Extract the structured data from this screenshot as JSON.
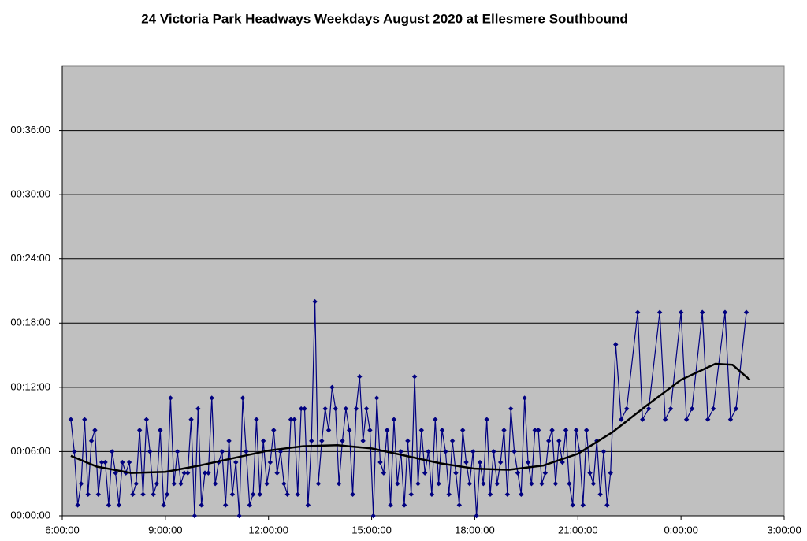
{
  "chart_data": {
    "type": "line",
    "title": "24 Victoria Park Headways Weekdays August 2020 at Ellesmere Southbound",
    "xlim": [
      6,
      27
    ],
    "xticks": [
      {
        "value": 6,
        "label": "6:00:00"
      },
      {
        "value": 9,
        "label": "9:00:00"
      },
      {
        "value": 12,
        "label": "12:00:00"
      },
      {
        "value": 15,
        "label": "15:00:00"
      },
      {
        "value": 18,
        "label": "18:00:00"
      },
      {
        "value": 21,
        "label": "21:00:00"
      },
      {
        "value": 24,
        "label": "0:00:00"
      },
      {
        "value": 27,
        "label": "3:00:00"
      }
    ],
    "ylim": [
      0,
      42
    ],
    "yticks": [
      {
        "value": 0,
        "label": "00:00:00"
      },
      {
        "value": 6,
        "label": "00:06:00"
      },
      {
        "value": 12,
        "label": "00:12:00"
      },
      {
        "value": 18,
        "label": "00:18:00"
      },
      {
        "value": 24,
        "label": "00:24:00"
      },
      {
        "value": 30,
        "label": "00:30:00"
      },
      {
        "value": 36,
        "label": "00:36:00"
      }
    ],
    "grid": true,
    "series": [
      {
        "color": "#000080",
        "markers": true,
        "x": [
          6.25,
          6.35,
          6.45,
          6.55,
          6.65,
          6.75,
          6.85,
          6.95,
          7.05,
          7.15,
          7.25,
          7.35,
          7.45,
          7.55,
          7.65,
          7.75,
          7.85,
          7.95,
          8.05,
          8.15,
          8.25,
          8.35,
          8.45,
          8.55,
          8.65,
          8.75,
          8.85,
          8.95,
          9.05,
          9.15,
          9.25,
          9.35,
          9.45,
          9.55,
          9.65,
          9.75,
          9.85,
          9.95,
          10.05,
          10.15,
          10.25,
          10.35,
          10.45,
          10.55,
          10.65,
          10.75,
          10.85,
          10.95,
          11.05,
          11.15,
          11.25,
          11.35,
          11.45,
          11.55,
          11.65,
          11.75,
          11.85,
          11.95,
          12.05,
          12.15,
          12.25,
          12.35,
          12.45,
          12.55,
          12.65,
          12.75,
          12.85,
          12.95,
          13.05,
          13.15,
          13.25,
          13.35,
          13.45,
          13.55,
          13.65,
          13.75,
          13.85,
          13.95,
          14.05,
          14.15,
          14.25,
          14.35,
          14.45,
          14.55,
          14.65,
          14.75,
          14.85,
          14.95,
          15.05,
          15.15,
          15.25,
          15.35,
          15.45,
          15.55,
          15.65,
          15.75,
          15.85,
          15.95,
          16.05,
          16.15,
          16.25,
          16.35,
          16.45,
          16.55,
          16.65,
          16.75,
          16.85,
          16.95,
          17.05,
          17.15,
          17.25,
          17.35,
          17.45,
          17.55,
          17.65,
          17.75,
          17.85,
          17.95,
          18.05,
          18.15,
          18.25,
          18.35,
          18.45,
          18.55,
          18.65,
          18.75,
          18.85,
          18.95,
          19.05,
          19.15,
          19.25,
          19.35,
          19.45,
          19.55,
          19.65,
          19.75,
          19.85,
          19.95,
          20.05,
          20.15,
          20.25,
          20.35,
          20.45,
          20.55,
          20.65,
          20.75,
          20.85,
          20.95,
          21.05,
          21.15,
          21.25,
          21.35,
          21.45,
          21.55,
          21.65,
          21.75,
          21.85,
          21.95,
          22.1,
          22.26,
          22.42,
          22.74,
          22.88,
          23.06,
          23.38,
          23.54,
          23.7,
          24.0,
          24.16,
          24.32,
          24.62,
          24.78,
          24.94,
          25.28,
          25.44,
          25.6,
          25.9
        ],
        "values": [
          9,
          6,
          1,
          3,
          9,
          2,
          7,
          8,
          2,
          5,
          5,
          1,
          6,
          4,
          1,
          5,
          4,
          5,
          2,
          3,
          8,
          2,
          9,
          6,
          2,
          3,
          8,
          1,
          2,
          11,
          3,
          6,
          3,
          4,
          4,
          9,
          0,
          10,
          1,
          4,
          4,
          11,
          3,
          5,
          6,
          1,
          7,
          2,
          5,
          0,
          11,
          6,
          1,
          2,
          9,
          2,
          7,
          3,
          5,
          8,
          4,
          6,
          3,
          2,
          9,
          9,
          2,
          10,
          10,
          1,
          7,
          20,
          3,
          7,
          10,
          8,
          12,
          10,
          3,
          7,
          10,
          8,
          2,
          10,
          13,
          7,
          10,
          8,
          0,
          11,
          5,
          4,
          8,
          1,
          9,
          3,
          6,
          1,
          7,
          2,
          13,
          3,
          8,
          4,
          6,
          2,
          9,
          3,
          8,
          6,
          2,
          7,
          4,
          1,
          8,
          5,
          3,
          6,
          0,
          5,
          3,
          9,
          2,
          6,
          3,
          5,
          8,
          2,
          10,
          6,
          4,
          2,
          11,
          5,
          3,
          8,
          8,
          3,
          4,
          7,
          8,
          3,
          7,
          5,
          8,
          3,
          1,
          8,
          6,
          1,
          8,
          4,
          3,
          7,
          2,
          6,
          1,
          4,
          16,
          9,
          10,
          19,
          9,
          10,
          19,
          9,
          10,
          19,
          9,
          10,
          19,
          9,
          10,
          19,
          9,
          10,
          19
        ]
      },
      {
        "color": "#000000",
        "markers": false,
        "x": [
          6.25,
          7,
          8,
          9,
          10,
          11,
          12,
          13,
          14,
          15,
          16,
          17,
          18,
          19,
          20,
          21,
          22,
          23,
          24,
          25,
          25.5,
          26
        ],
        "values": [
          5.6,
          4.6,
          4.0,
          4.1,
          4.7,
          5.4,
          6.1,
          6.5,
          6.6,
          6.3,
          5.6,
          4.9,
          4.4,
          4.3,
          4.7,
          5.8,
          7.8,
          10.3,
          12.7,
          14.2,
          14.1,
          12.7
        ]
      }
    ]
  }
}
